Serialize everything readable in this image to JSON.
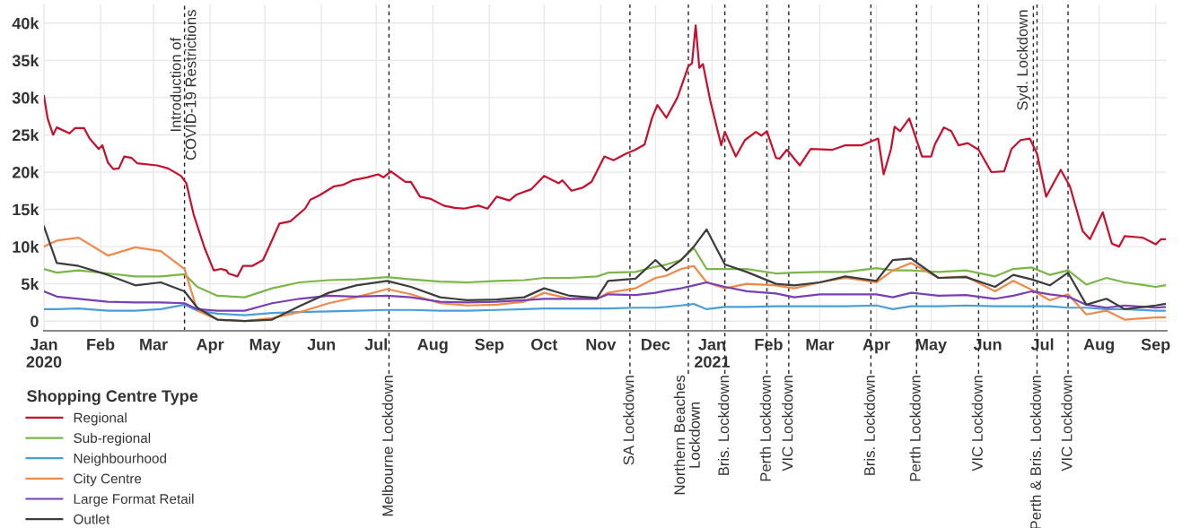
{
  "chart_data": {
    "type": "line",
    "legend_title": "Shopping Centre Type",
    "legend": "bottom left",
    "grid": true,
    "line_style": "solid",
    "marker": "none",
    "xlim": [
      "2020-01-01",
      "2021-09-07"
    ],
    "xticks": [
      {
        "value": "2020-01-01",
        "label": "Jan\n2020"
      },
      {
        "value": "2020-02-01",
        "label": "Feb"
      },
      {
        "value": "2020-03-01",
        "label": "Mar"
      },
      {
        "value": "2020-04-01",
        "label": "Apr"
      },
      {
        "value": "2020-05-01",
        "label": "May"
      },
      {
        "value": "2020-06-01",
        "label": "Jun"
      },
      {
        "value": "2020-07-01",
        "label": "Jul"
      },
      {
        "value": "2020-08-01",
        "label": "Aug"
      },
      {
        "value": "2020-09-01",
        "label": "Sep"
      },
      {
        "value": "2020-10-01",
        "label": "Oct"
      },
      {
        "value": "2020-11-01",
        "label": "Nov"
      },
      {
        "value": "2020-12-01",
        "label": "Dec"
      },
      {
        "value": "2021-01-01",
        "label": "Jan\n2021"
      },
      {
        "value": "2021-02-01",
        "label": "Feb"
      },
      {
        "value": "2021-03-01",
        "label": "Mar"
      },
      {
        "value": "2021-04-01",
        "label": "Apr"
      },
      {
        "value": "2021-05-01",
        "label": "May"
      },
      {
        "value": "2021-06-01",
        "label": "Jun"
      },
      {
        "value": "2021-07-01",
        "label": "Jul"
      },
      {
        "value": "2021-08-01",
        "label": "Aug"
      },
      {
        "value": "2021-09-01",
        "label": "Sep"
      }
    ],
    "ylim": [
      -1.3,
      42.5
    ],
    "yticks": [
      0,
      {
        "value": 5,
        "label": "5k"
      },
      {
        "value": 10,
        "label": "10k"
      },
      {
        "value": 15,
        "label": "15k"
      },
      {
        "value": 20,
        "label": "20k"
      },
      {
        "value": 25,
        "label": "25k"
      },
      {
        "value": 30,
        "label": "30k"
      },
      {
        "value": 35,
        "label": "35k"
      },
      {
        "value": 40,
        "label": "40k"
      }
    ],
    "x": [
      "2020-01-01",
      "2020-01-08",
      "2020-01-20",
      "2020-02-05",
      "2020-02-20",
      "2020-03-05",
      "2020-03-18",
      "2020-03-25",
      "2020-04-05",
      "2020-04-20",
      "2020-05-05",
      "2020-05-20",
      "2020-06-05",
      "2020-06-20",
      "2020-07-07",
      "2020-07-20",
      "2020-08-05",
      "2020-08-20",
      "2020-09-05",
      "2020-09-20",
      "2020-10-01",
      "2020-10-15",
      "2020-10-30",
      "2020-11-05",
      "2020-11-20",
      "2020-12-01",
      "2020-12-07",
      "2020-12-15",
      "2020-12-22",
      "2020-12-29",
      "2021-01-08",
      "2021-01-20",
      "2021-02-05",
      "2021-02-15",
      "2021-03-01",
      "2021-03-15",
      "2021-04-01",
      "2021-04-10",
      "2021-04-20",
      "2021-05-05",
      "2021-05-20",
      "2021-06-05",
      "2021-06-15",
      "2021-06-25",
      "2021-07-05",
      "2021-07-15",
      "2021-07-25",
      "2021-08-05",
      "2021-08-15",
      "2021-09-01",
      "2021-09-06"
    ],
    "series": [
      {
        "name": "Regional",
        "color": "#c8102e",
        "x": [
          "2020-01-01",
          "2020-01-03",
          "2020-01-06",
          "2020-01-08",
          "2020-01-15",
          "2020-01-18",
          "2020-01-23",
          "2020-01-26",
          "2020-01-31",
          "2020-02-02",
          "2020-02-05",
          "2020-02-08",
          "2020-02-11",
          "2020-02-14",
          "2020-02-18",
          "2020-02-21",
          "2020-03-03",
          "2020-03-09",
          "2020-03-16",
          "2020-03-19",
          "2020-03-23",
          "2020-03-29",
          "2020-04-03",
          "2020-04-07",
          "2020-04-10",
          "2020-04-11",
          "2020-04-16",
          "2020-04-19",
          "2020-04-24",
          "2020-04-30",
          "2020-05-03",
          "2020-05-09",
          "2020-05-15",
          "2020-05-23",
          "2020-05-26",
          "2020-05-31",
          "2020-06-08",
          "2020-06-13",
          "2020-06-18",
          "2020-06-26",
          "2020-07-02",
          "2020-07-05",
          "2020-07-09",
          "2020-07-17",
          "2020-07-20",
          "2020-07-25",
          "2020-07-31",
          "2020-08-07",
          "2020-08-13",
          "2020-08-18",
          "2020-08-26",
          "2020-08-31",
          "2020-09-05",
          "2020-09-12",
          "2020-09-16",
          "2020-09-24",
          "2020-10-01",
          "2020-10-09",
          "2020-10-11",
          "2020-10-16",
          "2020-10-22",
          "2020-10-27",
          "2020-11-03",
          "2020-11-08",
          "2020-11-15",
          "2020-11-20",
          "2020-11-25",
          "2020-11-29",
          "2020-12-02",
          "2020-12-07",
          "2020-12-13",
          "2020-12-19",
          "2020-12-21",
          "2020-12-23",
          "2020-12-25",
          "2020-12-27",
          "2020-12-31",
          "2021-01-06",
          "2021-01-08",
          "2021-01-14",
          "2021-01-19",
          "2021-01-25",
          "2021-01-28",
          "2021-01-31",
          "2021-02-05",
          "2021-02-07",
          "2021-02-11",
          "2021-02-18",
          "2021-02-24",
          "2021-03-08",
          "2021-03-15",
          "2021-03-24",
          "2021-04-02",
          "2021-04-05",
          "2021-04-09",
          "2021-04-11",
          "2021-04-14",
          "2021-04-19",
          "2021-04-24",
          "2021-04-26",
          "2021-05-01",
          "2021-05-03",
          "2021-05-08",
          "2021-05-12",
          "2021-05-16",
          "2021-05-21",
          "2021-05-27",
          "2021-06-03",
          "2021-06-10",
          "2021-06-14",
          "2021-06-19",
          "2021-06-24",
          "2021-06-28",
          "2021-07-03",
          "2021-07-11",
          "2021-07-16",
          "2021-07-23",
          "2021-07-27",
          "2021-08-03",
          "2021-08-08",
          "2021-08-12",
          "2021-08-15",
          "2021-08-25",
          "2021-09-01",
          "2021-09-04",
          "2021-09-06"
        ],
        "values": [
          30.2,
          27.2,
          25,
          26,
          25.2,
          25.9,
          25.9,
          24.5,
          23.1,
          23.6,
          21.3,
          20.4,
          20.5,
          22.1,
          21.9,
          21.2,
          20.9,
          20.5,
          19.5,
          18.5,
          14.3,
          9.8,
          6.8,
          7.0,
          6.8,
          6.4,
          6.0,
          7.4,
          7.4,
          8.2,
          9.8,
          13.1,
          13.4,
          15.1,
          16.3,
          16.9,
          18.1,
          18.3,
          18.9,
          19.3,
          19.7,
          19.3,
          20.1,
          18.7,
          18.7,
          16.7,
          16.4,
          15.5,
          15.2,
          15.1,
          15.5,
          15.1,
          16.7,
          16.2,
          17.0,
          17.7,
          19.5,
          18.5,
          18.9,
          17.5,
          17.9,
          18.7,
          22.1,
          21.6,
          22.5,
          23.0,
          23.7,
          27.2,
          29.0,
          27.3,
          30.0,
          34.2,
          34.6,
          39.7,
          34.0,
          34.5,
          29.6,
          23.6,
          25.4,
          22.1,
          24.3,
          25.4,
          24.9,
          25.5,
          21.9,
          21.8,
          23.0,
          20.9,
          23.1,
          23.0,
          23.6,
          23.6,
          24.5,
          19.7,
          23.1,
          26.1,
          25.5,
          27.2,
          23.6,
          22.1,
          22.1,
          23.7,
          26.0,
          25.5,
          23.6,
          23.9,
          23.0,
          20.0,
          20.1,
          23.1,
          24.3,
          24.5,
          22.5,
          16.7,
          20.3,
          18.1,
          12.1,
          11.0,
          14.6,
          10.4,
          10.0,
          11.4,
          11.2,
          10.3,
          11.0,
          11.0
        ]
      },
      {
        "name": "Sub-regional",
        "color": "#7ab648",
        "values": [
          7.0,
          6.5,
          6.8,
          6.4,
          6.0,
          6.0,
          6.3,
          4.6,
          3.4,
          3.2,
          4.4,
          5.2,
          5.5,
          5.6,
          5.9,
          5.6,
          5.3,
          5.2,
          5.4,
          5.5,
          5.8,
          5.8,
          6.0,
          6.5,
          6.6,
          7.3,
          7.6,
          8.2,
          9.8,
          7.0,
          7.0,
          7.0,
          6.4,
          6.5,
          6.6,
          6.6,
          7.1,
          6.8,
          6.8,
          6.6,
          6.8,
          6.0,
          7.0,
          7.2,
          6.2,
          6.8,
          4.9,
          5.8,
          5.2,
          4.6,
          4.8
        ]
      },
      {
        "name": "Neighbourhood",
        "color": "#4a9fd8",
        "values": [
          1.6,
          1.6,
          1.7,
          1.4,
          1.4,
          1.6,
          2.2,
          1.4,
          1.0,
          0.8,
          1.1,
          1.2,
          1.3,
          1.4,
          1.5,
          1.5,
          1.4,
          1.4,
          1.5,
          1.6,
          1.7,
          1.7,
          1.7,
          1.7,
          1.8,
          1.8,
          1.9,
          2.1,
          2.3,
          1.6,
          1.9,
          1.9,
          2.0,
          2.0,
          2.0,
          2.0,
          2.1,
          1.6,
          2.0,
          2.0,
          2.1,
          2.0,
          2.0,
          2.0,
          2.0,
          1.8,
          1.8,
          1.6,
          1.6,
          1.4,
          1.4
        ]
      },
      {
        "name": "City Centre",
        "color": "#f08a4b",
        "values": [
          10.0,
          10.8,
          11.2,
          8.8,
          9.9,
          9.4,
          7.0,
          1.4,
          0.2,
          0,
          0.4,
          1.2,
          2.4,
          3.2,
          4.3,
          3.6,
          2.4,
          2.1,
          2.2,
          2.6,
          3.8,
          3.0,
          3.0,
          3.8,
          4.4,
          5.8,
          6.1,
          7.0,
          7.4,
          5.2,
          4.4,
          5.0,
          4.8,
          4.4,
          5.2,
          5.8,
          5.2,
          6.8,
          7.8,
          5.8,
          6.0,
          4.0,
          5.4,
          4.2,
          2.8,
          3.6,
          0.9,
          1.4,
          0.2,
          0.5,
          0.5
        ]
      },
      {
        "name": "Large Format Retail",
        "color": "#7b3fb5",
        "values": [
          4.0,
          3.3,
          3.0,
          2.6,
          2.5,
          2.5,
          2.4,
          1.6,
          1.4,
          1.4,
          2.4,
          3.0,
          3.4,
          3.3,
          3.4,
          3.2,
          2.6,
          2.5,
          2.6,
          2.8,
          3.0,
          3.0,
          3.0,
          3.6,
          3.5,
          3.8,
          4.1,
          4.4,
          4.8,
          5.2,
          4.6,
          4.0,
          3.7,
          3.2,
          3.6,
          3.6,
          3.6,
          3.2,
          3.8,
          3.4,
          3.5,
          3.0,
          3.4,
          4.0,
          3.6,
          3.3,
          2.2,
          1.8,
          2.1,
          1.8,
          1.9
        ]
      },
      {
        "name": "Outlet",
        "color": "#3d3d3d",
        "values": [
          12.7,
          7.8,
          7.4,
          6.2,
          4.8,
          5.2,
          4.0,
          1.8,
          0.2,
          0,
          0.2,
          2.0,
          3.8,
          4.8,
          5.4,
          4.6,
          3.2,
          2.8,
          2.9,
          3.2,
          4.4,
          3.4,
          3.1,
          5.4,
          5.7,
          8.2,
          6.8,
          8.2,
          10.0,
          12.3,
          7.6,
          6.6,
          5.0,
          4.8,
          5.2,
          6.0,
          5.4,
          8.2,
          8.4,
          5.8,
          5.9,
          4.6,
          6.2,
          5.6,
          4.8,
          6.5,
          2.2,
          3.0,
          1.6,
          2.1,
          2.3
        ]
      }
    ],
    "ref_lines": [
      {
        "axis": "x",
        "value": "2020-03-18",
        "label": "Introduction of\nCOVID-19 Restrictions",
        "color": "#222222",
        "line_style": "dashed"
      },
      {
        "axis": "x",
        "value": "2020-07-08",
        "label": "Melbourne Lockdown",
        "color": "#222222",
        "line_style": "dashed"
      },
      {
        "axis": "x",
        "value": "2020-11-17",
        "label": "SA Lockdown",
        "color": "#222222",
        "line_style": "dashed"
      },
      {
        "axis": "x",
        "value": "2020-12-19",
        "label": "Northern Beaches\nLockdown",
        "color": "#222222",
        "line_style": "dashed"
      },
      {
        "axis": "x",
        "value": "2021-01-08",
        "label": "Bris. Lockdown",
        "color": "#222222",
        "line_style": "dashed"
      },
      {
        "axis": "x",
        "value": "2021-01-31",
        "label": "Perth Lockdown",
        "color": "#222222",
        "line_style": "dashed"
      },
      {
        "axis": "x",
        "value": "2021-02-12",
        "label": "VIC Lockdown",
        "color": "#222222",
        "line_style": "dashed"
      },
      {
        "axis": "x",
        "value": "2021-03-29",
        "label": "Bris. Lockdown",
        "color": "#222222",
        "line_style": "dashed"
      },
      {
        "axis": "x",
        "value": "2021-04-23",
        "label": "Perth Lockdown",
        "color": "#222222",
        "line_style": "dashed"
      },
      {
        "axis": "x",
        "value": "2021-05-27",
        "label": "VIC Lockdown",
        "color": "#222222",
        "line_style": "dashed"
      },
      {
        "axis": "x",
        "value": "2021-06-28",
        "label": "Perth & Bris. Lockdown",
        "color": "#222222",
        "line_style": "dashed"
      },
      {
        "axis": "x",
        "value": "2021-06-26",
        "label": "Syd. Lockdown",
        "color": "#222222",
        "line_style": "dashed"
      },
      {
        "axis": "x",
        "value": "2021-07-15",
        "label": "VIC Lockdown",
        "color": "#222222",
        "line_style": "dashed"
      }
    ]
  }
}
